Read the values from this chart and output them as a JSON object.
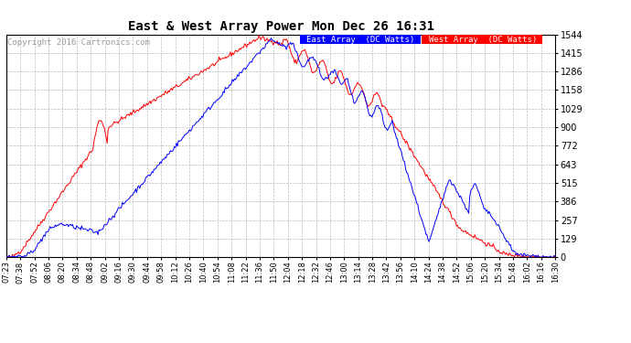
{
  "title": "East & West Array Power Mon Dec 26 16:31",
  "copyright": "Copyright 2016 Cartronics.com",
  "y_ticks": [
    0.0,
    128.6,
    257.3,
    385.9,
    514.6,
    643.2,
    771.9,
    900.5,
    1029.1,
    1157.8,
    1286.4,
    1415.1,
    1543.7
  ],
  "y_max": 1543.7,
  "y_min": 0.0,
  "east_color": "#0000ff",
  "west_color": "#ff0000",
  "bg_color": "#ffffff",
  "grid_color": "#bbbbbb",
  "x_tick_labels": [
    "07:23",
    "07:38",
    "07:52",
    "08:06",
    "08:20",
    "08:34",
    "08:48",
    "09:02",
    "09:16",
    "09:30",
    "09:44",
    "09:58",
    "10:12",
    "10:26",
    "10:40",
    "10:54",
    "11:08",
    "11:22",
    "11:36",
    "11:50",
    "12:04",
    "12:18",
    "12:32",
    "12:46",
    "13:00",
    "13:14",
    "13:28",
    "13:42",
    "13:56",
    "14:10",
    "14:24",
    "14:38",
    "14:52",
    "15:06",
    "15:20",
    "15:34",
    "15:48",
    "16:02",
    "16:16",
    "16:30"
  ],
  "figwidth": 6.9,
  "figheight": 3.75,
  "dpi": 100
}
